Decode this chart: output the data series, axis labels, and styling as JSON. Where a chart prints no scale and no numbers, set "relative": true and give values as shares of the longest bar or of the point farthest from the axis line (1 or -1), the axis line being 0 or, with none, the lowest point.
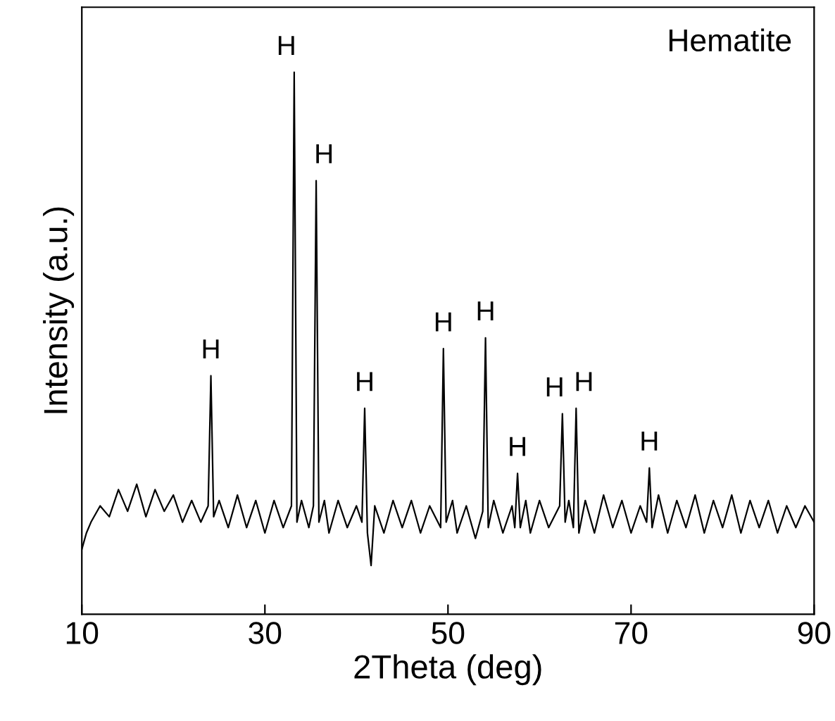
{
  "chart_data": {
    "type": "line",
    "relative": true,
    "color": "#000000",
    "xlabel": "2Theta (deg)",
    "ylabel": "Intensity (a.u.)",
    "xlim": [
      10,
      90
    ],
    "xticks": [
      10,
      30,
      50,
      70,
      90
    ],
    "tick_labels": "x",
    "x": [
      10,
      10.5,
      11,
      12,
      13,
      14,
      15,
      16,
      17,
      18,
      19,
      20,
      21,
      22,
      23,
      23.8,
      24.1,
      24.4,
      25,
      26,
      27,
      28,
      29,
      30,
      31,
      32,
      32.9,
      33.2,
      33.5,
      34,
      34.8,
      35.3,
      35.6,
      35.9,
      36.5,
      37,
      38,
      39,
      40,
      40.6,
      40.9,
      41.2,
      41.6,
      42,
      43,
      44,
      45,
      46,
      47,
      48,
      49.2,
      49.5,
      49.8,
      50.5,
      51,
      52,
      53,
      53.8,
      54.1,
      54.4,
      55,
      56,
      57,
      57.3,
      57.6,
      57.9,
      58.5,
      59,
      60,
      61,
      62.2,
      62.5,
      62.8,
      63.2,
      63.7,
      64.0,
      64.3,
      65,
      66,
      67,
      68,
      69,
      70,
      71,
      71.7,
      72.0,
      72.3,
      73,
      74,
      75,
      76,
      77,
      78,
      79,
      80,
      81,
      82,
      83,
      84,
      85,
      86,
      87,
      88,
      89,
      90
    ],
    "values": [
      0.12,
      0.15,
      0.17,
      0.2,
      0.18,
      0.23,
      0.19,
      0.24,
      0.18,
      0.23,
      0.19,
      0.22,
      0.17,
      0.21,
      0.17,
      0.2,
      0.44,
      0.18,
      0.21,
      0.16,
      0.22,
      0.16,
      0.21,
      0.15,
      0.21,
      0.16,
      0.2,
      1.0,
      0.17,
      0.21,
      0.16,
      0.2,
      0.8,
      0.17,
      0.21,
      0.15,
      0.21,
      0.16,
      0.2,
      0.17,
      0.38,
      0.15,
      0.09,
      0.2,
      0.15,
      0.21,
      0.16,
      0.21,
      0.15,
      0.2,
      0.16,
      0.49,
      0.17,
      0.21,
      0.15,
      0.2,
      0.14,
      0.19,
      0.51,
      0.16,
      0.21,
      0.15,
      0.2,
      0.16,
      0.26,
      0.16,
      0.21,
      0.15,
      0.21,
      0.16,
      0.2,
      0.37,
      0.17,
      0.21,
      0.16,
      0.38,
      0.15,
      0.21,
      0.15,
      0.22,
      0.16,
      0.21,
      0.15,
      0.2,
      0.17,
      0.27,
      0.16,
      0.22,
      0.15,
      0.21,
      0.16,
      0.22,
      0.15,
      0.21,
      0.16,
      0.22,
      0.15,
      0.21,
      0.16,
      0.21,
      0.15,
      0.2,
      0.16,
      0.2,
      0.17
    ],
    "annotations": [
      "Hematite",
      {
        "text": "H",
        "x": 24.1,
        "y": 0.44
      },
      {
        "text": "H",
        "x": 33.2,
        "y": 1.0
      },
      {
        "text": "H",
        "x": 35.6,
        "y": 0.8
      },
      {
        "text": "H",
        "x": 40.9,
        "y": 0.38
      },
      {
        "text": "H",
        "x": 49.5,
        "y": 0.49
      },
      {
        "text": "H",
        "x": 54.1,
        "y": 0.51
      },
      {
        "text": "H",
        "x": 57.6,
        "y": 0.26
      },
      {
        "text": "H",
        "x": 62.5,
        "y": 0.37
      },
      {
        "text": "H",
        "x": 64.0,
        "y": 0.38
      },
      {
        "text": "H",
        "x": 72.0,
        "y": 0.27
      }
    ]
  }
}
